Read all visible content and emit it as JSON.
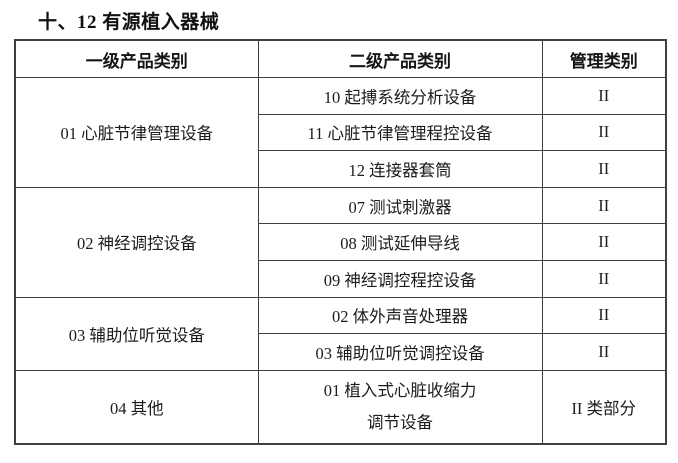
{
  "page": {
    "title": "十、12 有源植入器械"
  },
  "table": {
    "headers": [
      "一级产品类别",
      "二级产品类别",
      "管理类别"
    ],
    "groups": [
      {
        "level1": "01 心脏节律管理设备",
        "rows": [
          {
            "level2": "10 起搏系统分析设备",
            "mgmt_class": "II"
          },
          {
            "level2": "11 心脏节律管理程控设备",
            "mgmt_class": "II"
          },
          {
            "level2": "12 连接器套筒",
            "mgmt_class": "II"
          }
        ]
      },
      {
        "level1": "02 神经调控设备",
        "rows": [
          {
            "level2": "07 测试刺激器",
            "mgmt_class": "II"
          },
          {
            "level2": "08 测试延伸导线",
            "mgmt_class": "II"
          },
          {
            "level2": "09 神经调控程控设备",
            "mgmt_class": "II"
          }
        ]
      },
      {
        "level1": "03 辅助位听觉设备",
        "rows": [
          {
            "level2": "02 体外声音处理器",
            "mgmt_class": "II"
          },
          {
            "level2": "03 辅助位听觉调控设备",
            "mgmt_class": "II"
          }
        ]
      },
      {
        "level1": "04 其他",
        "rows": [
          {
            "level2_line1": "01 植入式心脏收缩力",
            "level2_line2": "调节设备",
            "mgmt_class": "II 类部分"
          }
        ]
      }
    ]
  },
  "colors": {
    "border": "#3f3f3f",
    "text": "#1c1c1c",
    "background": "#ffffff"
  }
}
